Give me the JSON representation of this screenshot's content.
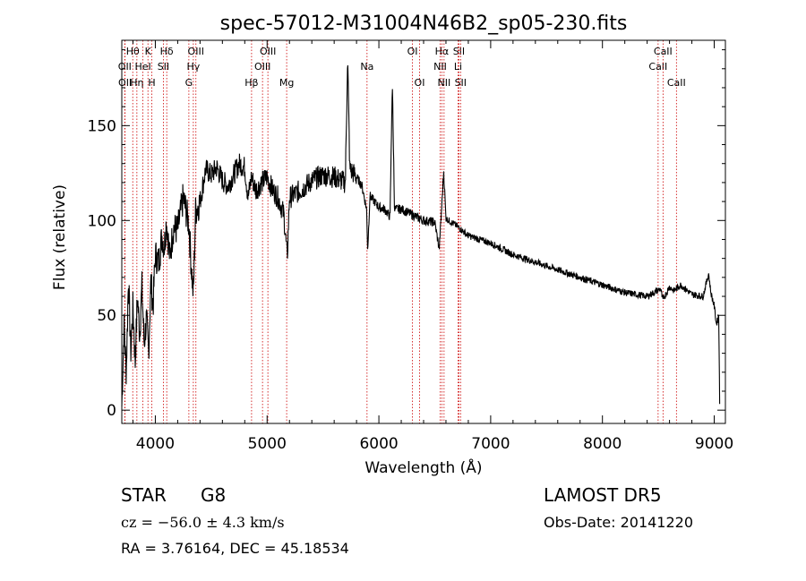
{
  "chart_data": {
    "type": "line",
    "title": "spec-57012-M31004N46B2_sp05-230.fits",
    "xlabel": "Wavelength (Å)",
    "ylabel": "Flux (relative)",
    "xlim": [
      3700,
      9100
    ],
    "ylim": [
      -7,
      195
    ],
    "xticks": [
      4000,
      5000,
      6000,
      7000,
      8000,
      9000
    ],
    "yticks": [
      0,
      50,
      100,
      150
    ],
    "grid": false,
    "series": [
      {
        "color": "#000000",
        "x": [
          3700,
          3720,
          3740,
          3760,
          3780,
          3800,
          3820,
          3840,
          3860,
          3880,
          3900,
          3920,
          3940,
          3960,
          3980,
          4000,
          4030,
          4060,
          4080,
          4100,
          4130,
          4160,
          4200,
          4250,
          4300,
          4320,
          4340,
          4360,
          4400,
          4450,
          4500,
          4550,
          4600,
          4650,
          4700,
          4750,
          4800,
          4830,
          4860,
          4900,
          4950,
          5000,
          5050,
          5100,
          5150,
          5170,
          5180,
          5200,
          5300,
          5400,
          5500,
          5600,
          5700,
          5720,
          5740,
          5800,
          5850,
          5890,
          5900,
          5920,
          6000,
          6050,
          6100,
          6120,
          6140,
          6200,
          6300,
          6400,
          6500,
          6540,
          6563,
          6580,
          6600,
          6700,
          6800,
          7000,
          7200,
          7400,
          7600,
          7800,
          8000,
          8200,
          8400,
          8490,
          8520,
          8540,
          8600,
          8640,
          8700,
          8800,
          8900,
          8950,
          8970,
          9000,
          9020,
          9040,
          9050
        ],
        "y": [
          2,
          45,
          20,
          70,
          30,
          55,
          25,
          60,
          40,
          65,
          35,
          48,
          30,
          68,
          55,
          82,
          78,
          92,
          86,
          100,
          80,
          96,
          95,
          112,
          98,
          78,
          60,
          105,
          110,
          127,
          124,
          128,
          121,
          118,
          124,
          130,
          128,
          112,
          123,
          116,
          120,
          123,
          116,
          112,
          103,
          88,
          80,
          112,
          116,
          121,
          124,
          123,
          120,
          186,
          127,
          123,
          118,
          106,
          84,
          113,
          107,
          106,
          102,
          173,
          106,
          106,
          103,
          100,
          99,
          85,
          108,
          126,
          101,
          97,
          92,
          88,
          82,
          78,
          74,
          70,
          66,
          62,
          60,
          63,
          64,
          58,
          65,
          63,
          66,
          61,
          60,
          72,
          62,
          55,
          45,
          50,
          0
        ]
      }
    ],
    "emission_lines": [
      {
        "label": "Hβ",
        "x": 4861,
        "row": 3
      },
      {
        "label": "OIII",
        "x": 4959,
        "row": 2
      },
      {
        "label": "OIII",
        "x": 5007,
        "row": 1
      },
      {
        "label": "OI",
        "x": 6300,
        "row": 1
      },
      {
        "label": "OI",
        "x": 6364,
        "row": 3
      },
      {
        "label": "Hα",
        "x": 6563,
        "row": 1
      },
      {
        "label": "NII",
        "x": 6548,
        "row": 2
      },
      {
        "label": "NII",
        "x": 6583,
        "row": 3
      },
      {
        "label": "SII",
        "x": 6716,
        "row": 1
      },
      {
        "label": "SII",
        "x": 6731,
        "row": 3
      }
    ],
    "absorption_lines": [
      {
        "label": "OII",
        "x": 3727,
        "row": 2
      },
      {
        "label": "OII",
        "x": 3729,
        "row": 3
      },
      {
        "label": "Hθ",
        "x": 3798,
        "row": 1
      },
      {
        "label": "Hη",
        "x": 3835,
        "row": 3
      },
      {
        "label": "HeI",
        "x": 3889,
        "row": 2
      },
      {
        "label": "K",
        "x": 3934,
        "row": 1
      },
      {
        "label": "H",
        "x": 3969,
        "row": 3
      },
      {
        "label": "SII",
        "x": 4072,
        "row": 2
      },
      {
        "label": "Hδ",
        "x": 4102,
        "row": 1
      },
      {
        "label": "G",
        "x": 4300,
        "row": 3
      },
      {
        "label": "Hγ",
        "x": 4340,
        "row": 2
      },
      {
        "label": "OIII",
        "x": 4363,
        "row": 1
      },
      {
        "label": "Mg",
        "x": 5175,
        "row": 3
      },
      {
        "label": "Na",
        "x": 5894,
        "row": 2
      },
      {
        "label": "Li",
        "x": 6708,
        "row": 2
      },
      {
        "label": "CaII",
        "x": 8498,
        "row": 2
      },
      {
        "label": "CaII",
        "x": 8542,
        "row": 1
      },
      {
        "label": "CaII",
        "x": 8662,
        "row": 3
      }
    ]
  },
  "info": {
    "class": "STAR",
    "subclass": "G8",
    "survey": "LAMOST DR5",
    "redshift": "cz = −56.0 ± 4.3 km/s",
    "obsdate": "Obs-Date: 20141220",
    "coords": "RA =    3.76164, DEC =  45.18534"
  }
}
